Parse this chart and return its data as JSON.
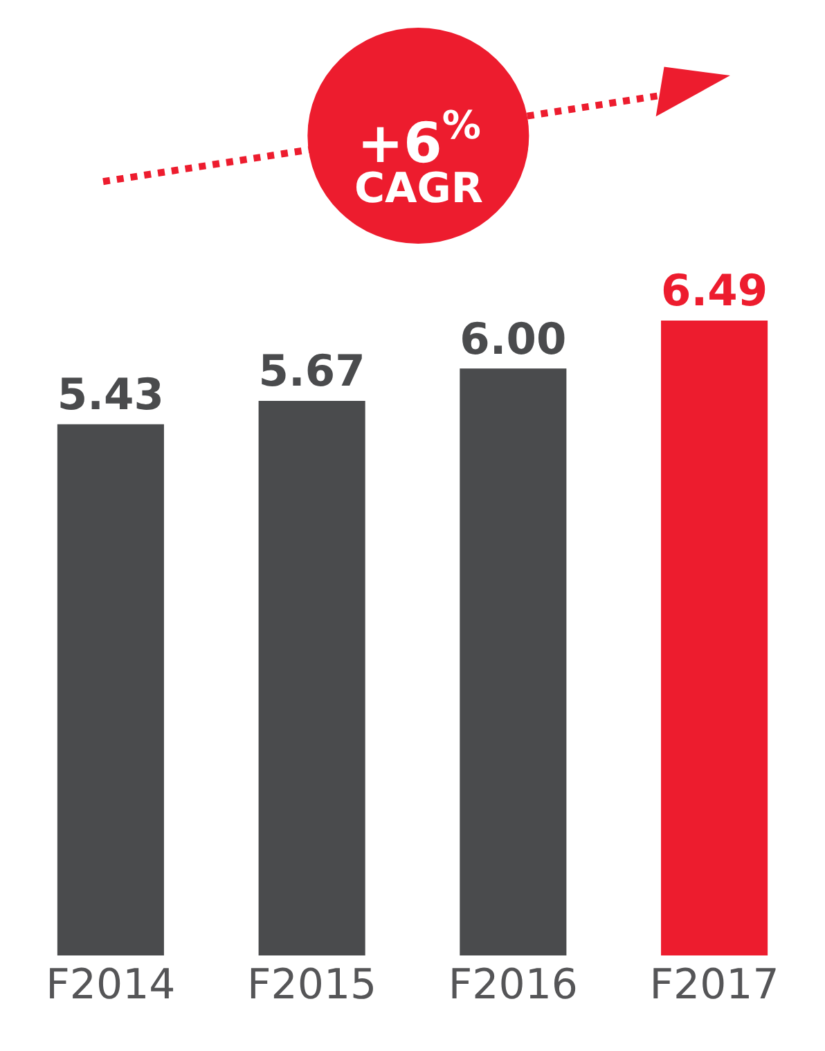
{
  "chart_data": {
    "type": "bar",
    "categories": [
      "F2014",
      "F2015",
      "F2016",
      "F2017"
    ],
    "values": [
      5.43,
      5.67,
      6.0,
      6.49
    ],
    "value_labels": [
      "5.43",
      "5.67",
      "6.00",
      "6.49"
    ],
    "colors": [
      "#4a4b4d",
      "#4a4b4d",
      "#4a4b4d",
      "#ed1c2e"
    ],
    "annotations": [
      "+6$^{%}$",
      "CAGR"
    ],
    "tick_labels": "x",
    "legend": false
  }
}
